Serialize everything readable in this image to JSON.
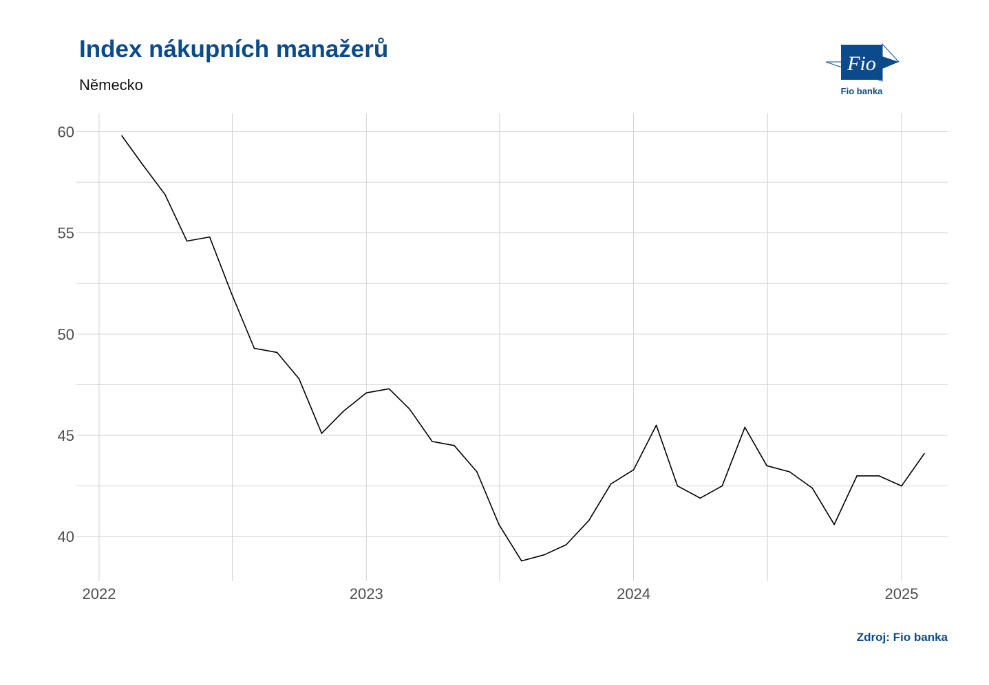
{
  "header": {
    "title": "Index nákupních manažerů",
    "subtitle": "Německo"
  },
  "logo": {
    "label": "Fio banka",
    "mark_text": "Fio",
    "color": "#0b4a8b"
  },
  "source": "Zdroj: Fio banka",
  "chart_data": {
    "type": "line",
    "title": "Index nákupních manažerů",
    "subtitle": "Německo",
    "xlabel": "",
    "ylabel": "",
    "x_ticks": [
      "2022",
      "2023",
      "2024",
      "2025"
    ],
    "y_ticks": [
      40,
      45,
      50,
      55,
      60
    ],
    "ylim": [
      37.8,
      60.9
    ],
    "xlim": [
      "2021-12-01",
      "2025-03-05"
    ],
    "grid": true,
    "line_color": "#000000",
    "series": [
      {
        "x": [
          "2022-02",
          "2022-03",
          "2022-04",
          "2022-05",
          "2022-06",
          "2022-07",
          "2022-08",
          "2022-09",
          "2022-10",
          "2022-11",
          "2022-12",
          "2023-01",
          "2023-02",
          "2023-03",
          "2023-04",
          "2023-05",
          "2023-06",
          "2023-07",
          "2023-08",
          "2023-09",
          "2023-10",
          "2023-11",
          "2023-12",
          "2024-01",
          "2024-02",
          "2024-03",
          "2024-04",
          "2024-05",
          "2024-06",
          "2024-07",
          "2024-08",
          "2024-09",
          "2024-10",
          "2024-11",
          "2024-12",
          "2025-01",
          "2025-02"
        ],
        "values": [
          59.8,
          58.4,
          56.9,
          54.6,
          54.8,
          52.0,
          49.3,
          49.1,
          47.8,
          45.1,
          46.2,
          47.1,
          47.3,
          46.3,
          44.7,
          44.5,
          43.2,
          40.6,
          38.8,
          39.1,
          39.6,
          40.8,
          42.6,
          43.3,
          45.5,
          42.5,
          41.9,
          42.5,
          45.4,
          43.5,
          43.2,
          42.4,
          40.6,
          43.0,
          43.0,
          42.5,
          44.1
        ]
      }
    ]
  }
}
